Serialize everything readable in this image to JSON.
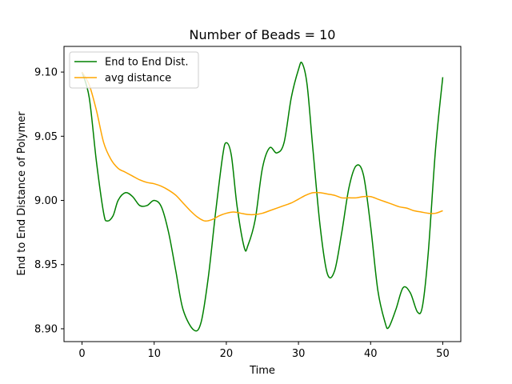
{
  "chart_data": {
    "type": "line",
    "title": "Number of Beads = 10",
    "xlabel": "Time",
    "ylabel": "End to End Distance of Polymer",
    "xlim": [
      -2.5,
      52.5
    ],
    "ylim": [
      8.89,
      9.12
    ],
    "xticks": [
      0,
      10,
      20,
      30,
      40,
      50
    ],
    "xtick_labels": [
      "0",
      "10",
      "20",
      "30",
      "40",
      "50"
    ],
    "yticks": [
      8.9,
      8.95,
      9.0,
      9.05,
      9.1
    ],
    "ytick_labels": [
      "8.90",
      "8.95",
      "9.00",
      "9.05",
      "9.10"
    ],
    "grid": false,
    "legend_position": "upper-left",
    "series": [
      {
        "name": "End to End Dist.",
        "color": "#008000",
        "points": [
          [
            0,
            9.1
          ],
          [
            1,
            9.08
          ],
          [
            2,
            9.03
          ],
          [
            3,
            8.99
          ],
          [
            3.5,
            8.984
          ],
          [
            4.3,
            8.988
          ],
          [
            5,
            9.0
          ],
          [
            6,
            9.006
          ],
          [
            7,
            9.003
          ],
          [
            8,
            8.996
          ],
          [
            9,
            8.996
          ],
          [
            10,
            9.0
          ],
          [
            11,
            8.995
          ],
          [
            12,
            8.975
          ],
          [
            13,
            8.945
          ],
          [
            14,
            8.915
          ],
          [
            15.5,
            8.899
          ],
          [
            16.5,
            8.905
          ],
          [
            17.5,
            8.94
          ],
          [
            18.5,
            8.99
          ],
          [
            19.5,
            9.035
          ],
          [
            20,
            9.045
          ],
          [
            20.7,
            9.035
          ],
          [
            21.5,
            8.995
          ],
          [
            22.5,
            8.963
          ],
          [
            23,
            8.965
          ],
          [
            24,
            8.985
          ],
          [
            25,
            9.025
          ],
          [
            26,
            9.041
          ],
          [
            27,
            9.037
          ],
          [
            28,
            9.045
          ],
          [
            29,
            9.08
          ],
          [
            30,
            9.102
          ],
          [
            30.5,
            9.107
          ],
          [
            31.2,
            9.09
          ],
          [
            32,
            9.04
          ],
          [
            33,
            8.98
          ],
          [
            34,
            8.943
          ],
          [
            35,
            8.945
          ],
          [
            36,
            8.975
          ],
          [
            37,
            9.01
          ],
          [
            38,
            9.027
          ],
          [
            39,
            9.02
          ],
          [
            40,
            8.98
          ],
          [
            41,
            8.93
          ],
          [
            42,
            8.905
          ],
          [
            42.5,
            8.901
          ],
          [
            43.5,
            8.915
          ],
          [
            44.5,
            8.932
          ],
          [
            45.5,
            8.928
          ],
          [
            46.5,
            8.913
          ],
          [
            47.2,
            8.918
          ],
          [
            48,
            8.96
          ],
          [
            49,
            9.04
          ],
          [
            50,
            9.096
          ]
        ]
      },
      {
        "name": "avg distance",
        "color": "#ffa500",
        "points": [
          [
            0,
            9.1
          ],
          [
            1,
            9.09
          ],
          [
            2,
            9.07
          ],
          [
            3,
            9.045
          ],
          [
            4,
            9.032
          ],
          [
            5,
            9.025
          ],
          [
            6,
            9.022
          ],
          [
            7,
            9.019
          ],
          [
            8,
            9.016
          ],
          [
            9,
            9.014
          ],
          [
            10,
            9.013
          ],
          [
            11,
            9.011
          ],
          [
            12,
            9.008
          ],
          [
            13,
            9.004
          ],
          [
            14,
            8.998
          ],
          [
            15,
            8.992
          ],
          [
            16,
            8.987
          ],
          [
            17,
            8.984
          ],
          [
            18,
            8.985
          ],
          [
            19,
            8.988
          ],
          [
            20,
            8.99
          ],
          [
            21,
            8.991
          ],
          [
            22,
            8.99
          ],
          [
            23,
            8.989
          ],
          [
            24,
            8.989
          ],
          [
            25,
            8.99
          ],
          [
            26,
            8.992
          ],
          [
            27,
            8.994
          ],
          [
            28,
            8.996
          ],
          [
            29,
            8.998
          ],
          [
            30,
            9.001
          ],
          [
            31,
            9.004
          ],
          [
            32,
            9.006
          ],
          [
            33,
            9.006
          ],
          [
            34,
            9.005
          ],
          [
            35,
            9.004
          ],
          [
            36,
            9.002
          ],
          [
            37,
            9.002
          ],
          [
            38,
            9.002
          ],
          [
            39,
            9.003
          ],
          [
            40,
            9.003
          ],
          [
            41,
            9.001
          ],
          [
            42,
            8.999
          ],
          [
            43,
            8.997
          ],
          [
            44,
            8.995
          ],
          [
            45,
            8.994
          ],
          [
            46,
            8.992
          ],
          [
            47,
            8.991
          ],
          [
            48,
            8.99
          ],
          [
            49,
            8.99
          ],
          [
            50,
            8.992
          ]
        ]
      }
    ]
  }
}
